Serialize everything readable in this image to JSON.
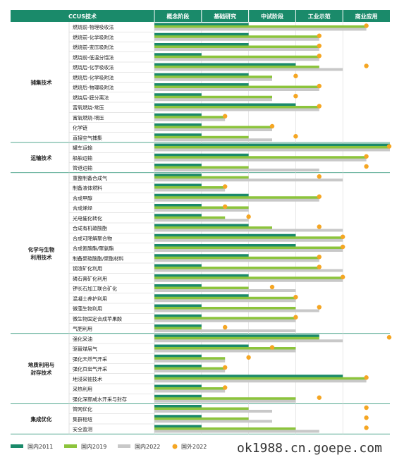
{
  "chart_data": {
    "type": "bar",
    "header": {
      "tech_label": "CCUS技术",
      "stages": [
        "概念阶段",
        "基础研究",
        "中试阶段",
        "工业示范",
        "商业应用"
      ]
    },
    "legend": [
      {
        "key": "d2011",
        "label": "国内2011",
        "color": "#1a8a6a",
        "shape": "bar"
      },
      {
        "key": "d2019",
        "label": "国内2019",
        "color": "#8cc43c",
        "shape": "bar"
      },
      {
        "key": "d2022",
        "label": "国内2022",
        "color": "#c8c8c8",
        "shape": "bar"
      },
      {
        "key": "f2022",
        "label": "国外2022",
        "color": "#f5a623",
        "shape": "dot"
      }
    ],
    "scale": {
      "min": 0,
      "max": 5
    },
    "categories": [
      {
        "name": "捕集技术",
        "items": [
          {
            "label": "燃烧前-物理吸收法",
            "d2011": 2,
            "d2019": 4.5,
            "d2022": 4.5,
            "f2022": 4.5
          },
          {
            "label": "燃烧前-化学吸附法",
            "d2011": 2,
            "d2019": 3.5,
            "d2022": 3.5,
            "f2022": 3.5
          },
          {
            "label": "燃烧前-变压吸附法",
            "d2011": 2,
            "d2019": 3.5,
            "d2022": 3.5,
            "f2022": 3.5
          },
          {
            "label": "燃烧前-低温分馏法",
            "d2011": 1,
            "d2019": 3.5,
            "d2022": 3.5,
            "f2022": 3.5
          },
          {
            "label": "燃烧后-化学吸收法",
            "d2011": 3,
            "d2019": 3.5,
            "d2022": 4,
            "f2022": 4.5
          },
          {
            "label": "燃烧后-化学吸附法",
            "d2011": 2,
            "d2019": 2.5,
            "d2022": 2.5,
            "f2022": 3
          },
          {
            "label": "燃烧后-物理吸附法",
            "d2011": 2,
            "d2019": 3.5,
            "d2022": 3.5,
            "f2022": 3.5
          },
          {
            "label": "燃烧后-膜分离法",
            "d2011": 1,
            "d2019": 2.5,
            "d2022": 2.5,
            "f2022": 3
          },
          {
            "label": "富氧燃烧-常压",
            "d2011": 3,
            "d2019": 3.5,
            "d2022": 3.5,
            "f2022": 3.5
          },
          {
            "label": "富氧燃烧-增压",
            "d2011": 1,
            "d2019": 1.5,
            "d2022": 1.5,
            "f2022": 1.5
          },
          {
            "label": "化学链",
            "d2011": 1,
            "d2019": 2.5,
            "d2022": 2.5,
            "f2022": 2.5
          },
          {
            "label": "直接空气捕集",
            "d2011": 1,
            "d2019": 2,
            "d2022": 2.5,
            "f2022": 3
          }
        ]
      },
      {
        "name": "运输技术",
        "items": [
          {
            "label": "罐车运输",
            "d2011": 5,
            "d2019": 5,
            "d2022": 5,
            "f2022": 5
          },
          {
            "label": "船舶运输",
            "d2011": 2,
            "d2019": 4.5,
            "d2022": 4.5,
            "f2022": 4.5
          },
          {
            "label": "管道运输",
            "d2011": 1,
            "d2019": 2,
            "d2022": 3.5,
            "f2022": 4.5
          }
        ]
      },
      {
        "name": "化学与生物\n利用技术",
        "items": [
          {
            "label": "重整制备合成气",
            "d2011": 1,
            "d2019": 2,
            "d2022": 4,
            "f2022": 3.5
          },
          {
            "label": "制备液体燃料",
            "d2011": 1,
            "d2019": 1.5,
            "d2022": 1.5,
            "f2022": 1.5
          },
          {
            "label": "合成甲醇",
            "d2011": 2,
            "d2019": 3.5,
            "d2022": 3.5,
            "f2022": 3.5
          },
          {
            "label": "合成烯烃",
            "d2011": 1,
            "d2019": 2,
            "d2022": 2,
            "f2022": 1.5
          },
          {
            "label": "光电催化转化",
            "d2011": 1,
            "d2019": 1.5,
            "d2022": 2,
            "f2022": 2
          },
          {
            "label": "合成有机碳酸酯",
            "d2011": 2,
            "d2019": 2.5,
            "d2022": 4,
            "f2022": 3.5
          },
          {
            "label": "合成可降解聚合物",
            "d2011": 3,
            "d2019": 4,
            "d2022": 4,
            "f2022": 4
          },
          {
            "label": "合成氰酸酯/聚氨酯",
            "d2011": 3,
            "d2019": 4,
            "d2022": 4,
            "f2022": 4
          },
          {
            "label": "制备聚碳酸酯/聚酯材料",
            "d2011": 2,
            "d2019": 3.5,
            "d2022": 3.5,
            "f2022": 3.5
          },
          {
            "label": "钢渣矿化利用",
            "d2011": 1,
            "d2019": 3.5,
            "d2022": 4,
            "f2022": 3.5
          },
          {
            "label": "磷石膏矿化利用",
            "d2011": 2,
            "d2019": 4,
            "d2022": 4,
            "f2022": 4
          },
          {
            "label": "钾长石加工联合矿化",
            "d2011": 1,
            "d2019": 2,
            "d2022": 3,
            "f2022": 2.5
          },
          {
            "label": "混凝土养护利用",
            "d2011": 2,
            "d2019": 3,
            "d2022": 3,
            "f2022": 3
          },
          {
            "label": "微藻生物利用",
            "d2011": 1,
            "d2019": 3,
            "d2022": 3.5,
            "f2022": 3.5
          },
          {
            "label": "微生物固定合成苹果酸",
            "d2011": 1,
            "d2019": 3,
            "d2022": 3,
            "f2022": 3
          },
          {
            "label": "气肥利用",
            "d2011": 1,
            "d2019": 1,
            "d2022": 3,
            "f2022": 1.5
          }
        ]
      },
      {
        "name": "地质利用与\n封存技术",
        "items": [
          {
            "label": "强化采油",
            "d2011": 3.5,
            "d2019": 3.5,
            "d2022": 4,
            "f2022": 5
          },
          {
            "label": "驱替煤层气",
            "d2011": 2,
            "d2019": 3,
            "d2022": 3,
            "f2022": 2.5
          },
          {
            "label": "强化天然气开采",
            "d2011": 1,
            "d2019": 1.5,
            "d2022": 1.5,
            "f2022": 2
          },
          {
            "label": "强化页岩气开采",
            "d2011": 1,
            "d2019": 1.5,
            "d2022": 1.5,
            "f2022": 1.5
          },
          {
            "label": "地浸采铀技术",
            "d2011": 4,
            "d2019": 4.5,
            "d2022": 4.5,
            "f2022": 4.5
          },
          {
            "label": "采热利用",
            "d2011": 1,
            "d2019": 1.5,
            "d2022": 1.5,
            "f2022": 1.5
          },
          {
            "label": "强化深部咸水开采与封存",
            "d2011": 1,
            "d2019": 3,
            "d2022": 3,
            "f2022": 3.5
          }
        ]
      },
      {
        "name": "集成优化",
        "items": [
          {
            "label": "管网优化",
            "d2011": 1,
            "d2019": 2,
            "d2022": 2.5,
            "f2022": 4.5
          },
          {
            "label": "集群枢纽",
            "d2011": 1,
            "d2019": 2,
            "d2022": 2.5,
            "f2022": 4.5
          },
          {
            "label": "安全监测",
            "d2011": 1,
            "d2019": 3,
            "d2022": 3.5,
            "f2022": 4.5
          }
        ]
      }
    ]
  },
  "watermark": "ok1988.cn.goepe.com"
}
